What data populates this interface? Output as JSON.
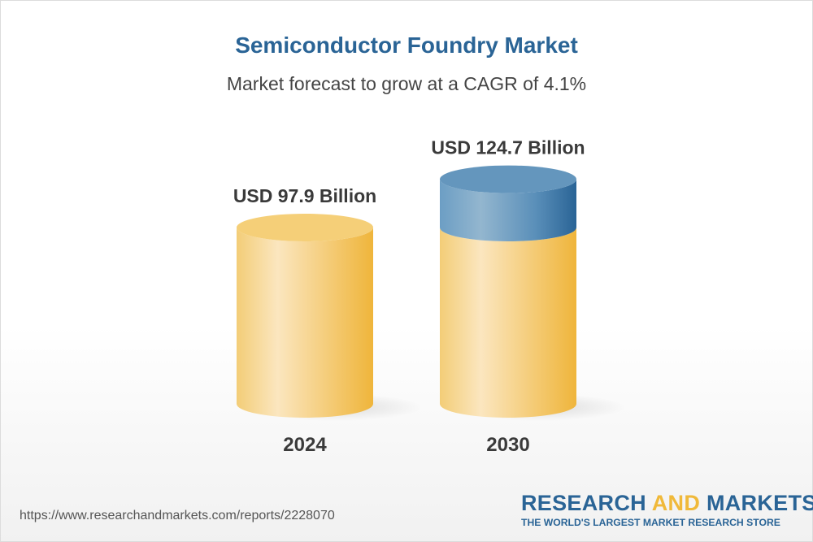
{
  "chart_data": {
    "type": "bar",
    "style": "3d-cylinder",
    "title": "Semiconductor Foundry Market",
    "subtitle": "Market forecast to grow at a CAGR of 4.1%",
    "categories": [
      "2024",
      "2030"
    ],
    "values": [
      97.9,
      124.7
    ],
    "data_labels": [
      "USD 97.9 Billion",
      "USD 124.7 Billion"
    ],
    "unit": "USD Billion",
    "colors": {
      "base": "#f0b93a",
      "growth": "#2a6496",
      "title": "#2a6496"
    }
  },
  "footer": {
    "url": "https://www.researchandmarkets.com/reports/2228070",
    "logo_research": "RESEARCH",
    "logo_and": "AND",
    "logo_markets": "MARKETS",
    "logo_tagline": "THE WORLD'S LARGEST MARKET RESEARCH STORE"
  }
}
